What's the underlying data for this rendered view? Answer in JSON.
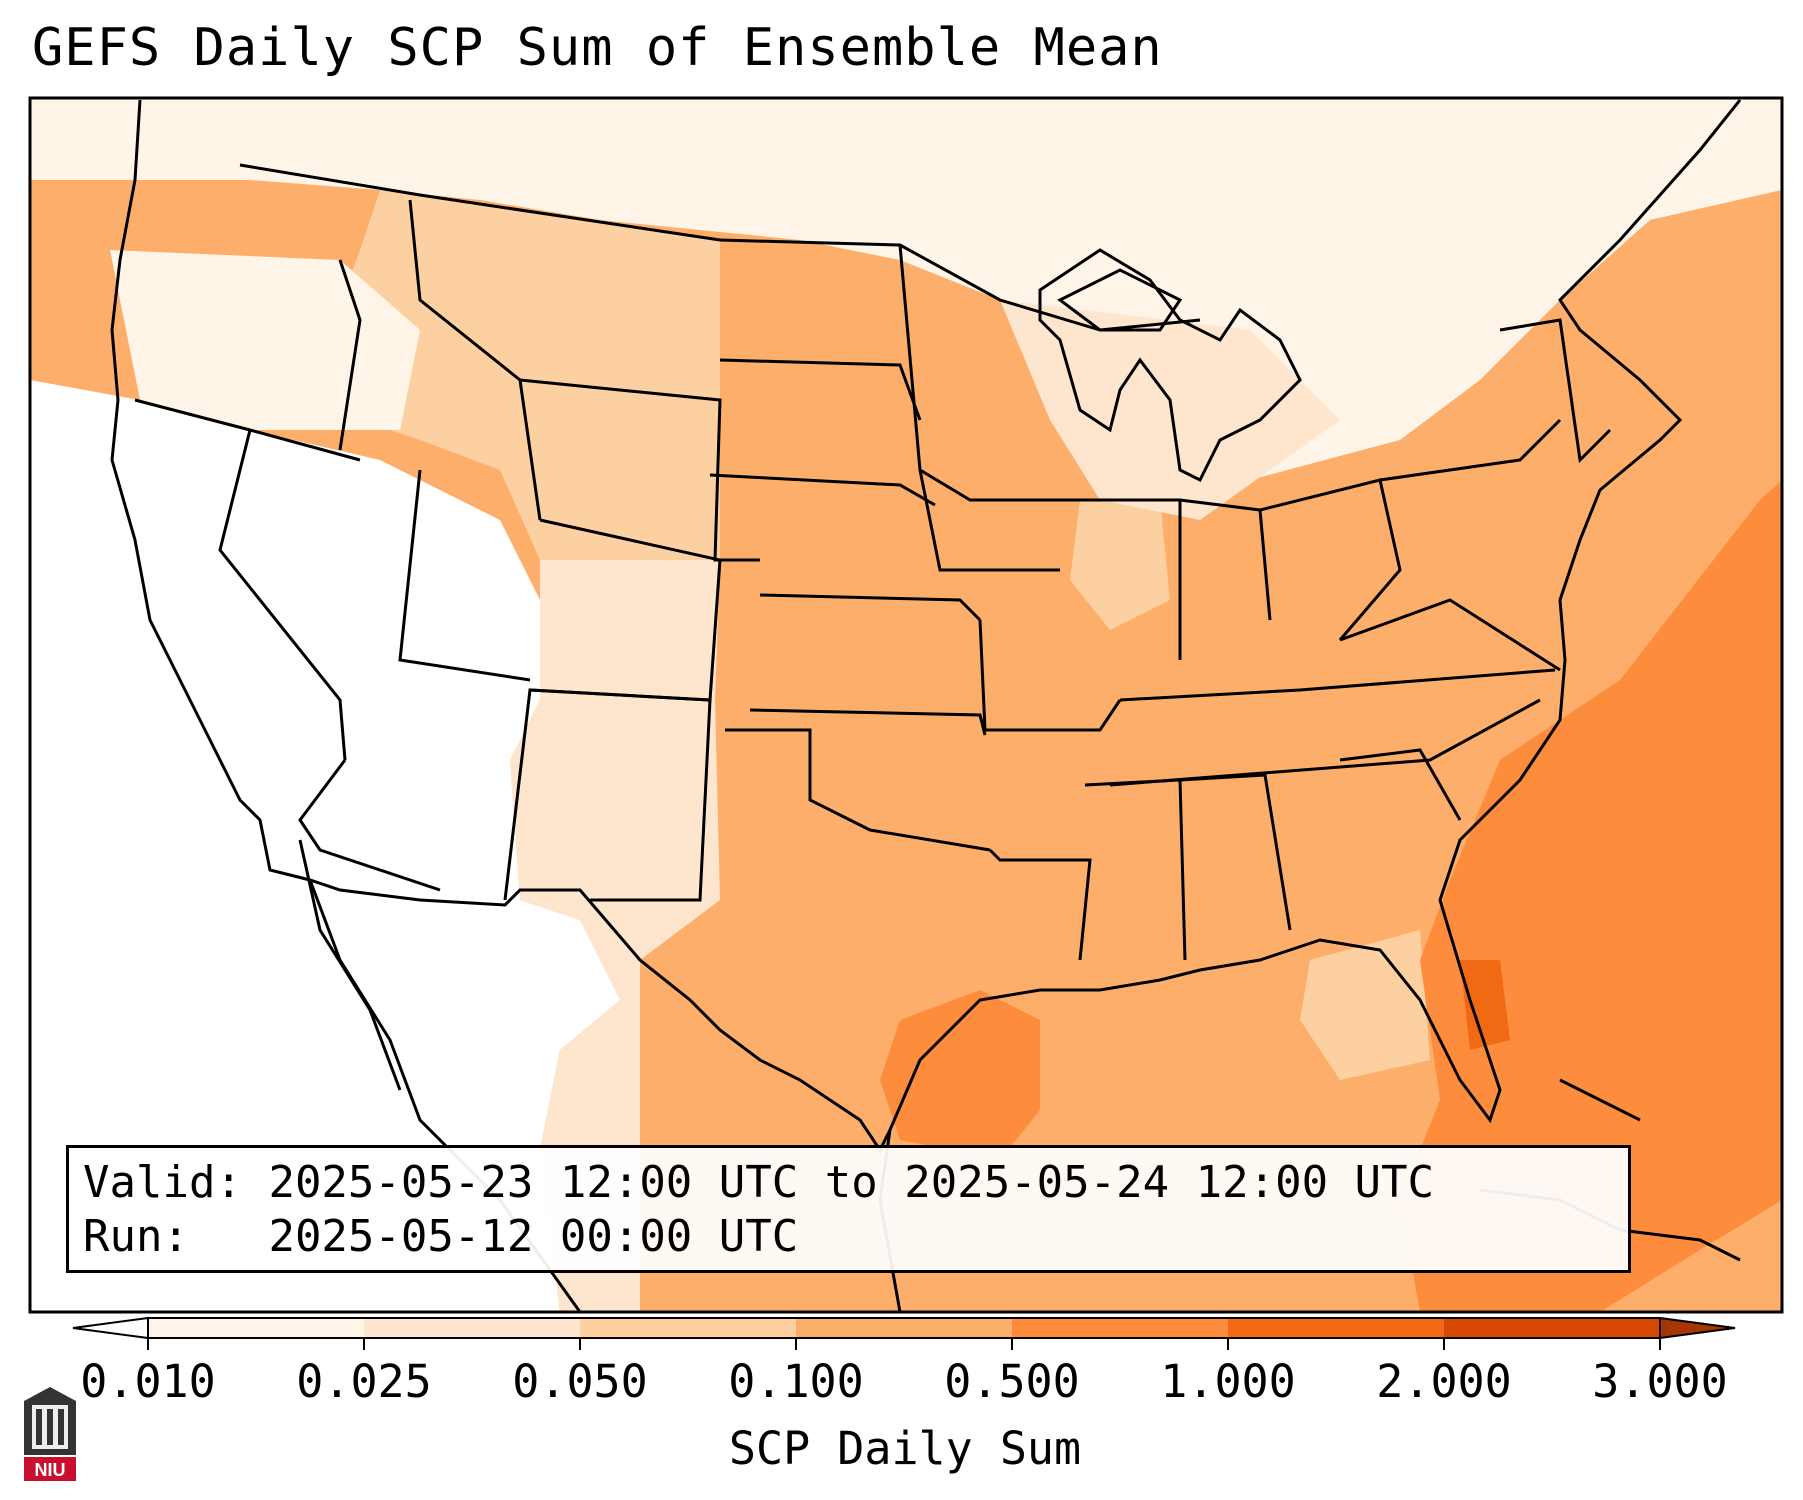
{
  "title": "GEFS Daily SCP Sum of Ensemble Mean",
  "info": {
    "valid_label": "Valid:",
    "valid_value": "2025-05-23 12:00 UTC to 2025-05-24 12:00 UTC",
    "run_label": "Run:",
    "run_value": "2025-05-12 00:00 UTC"
  },
  "colorbar": {
    "label": "SCP Daily Sum",
    "ticks": [
      "0.010",
      "0.025",
      "0.050",
      "0.100",
      "0.500",
      "1.000",
      "2.000",
      "3.000"
    ],
    "colors": [
      "#fef4e8",
      "#fee6ce",
      "#fdd0a2",
      "#fdae6b",
      "#fd8d3c",
      "#f16913",
      "#d94801"
    ],
    "extend": "both",
    "under_color": "#ffffff",
    "over_color": "#a63603"
  },
  "logo": {
    "text": "NIU",
    "color": "#c8102e"
  },
  "map_colors": {
    "land_base": "#fdae6b",
    "west_dry": "#ffffff",
    "light": "#fee6ce",
    "lighter": "#fef4e8",
    "mid": "#fdd0a2",
    "strong": "#fd8d3c",
    "stronger": "#f16913",
    "border": "#000000"
  }
}
